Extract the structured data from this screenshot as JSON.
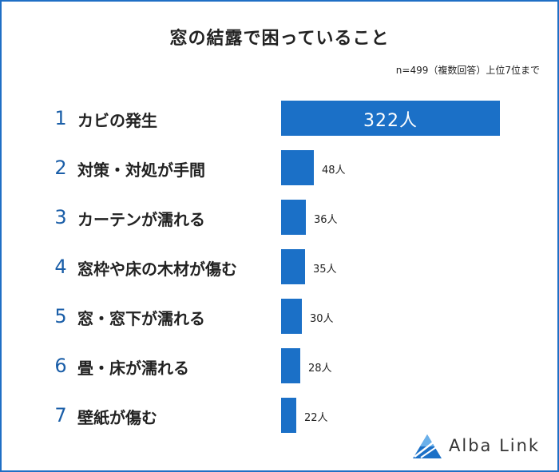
{
  "title": "窓の結露で困っていること",
  "note": "n=499（複数回答）上位7位まで",
  "brand": "Alba Link",
  "colors": {
    "bar": "#1b70c7",
    "rank": "#1a5ea8",
    "border": "#1f6fc5"
  },
  "chart_data": {
    "type": "bar",
    "orientation": "horizontal",
    "unit": "人",
    "ranks": [
      "1",
      "2",
      "3",
      "4",
      "5",
      "6",
      "7"
    ],
    "categories": [
      "カビの発生",
      "対策・対処が手間",
      "カーテンが濡れる",
      "窓枠や床の木材が傷む",
      "窓・窓下が濡れる",
      "畳・床が濡れる",
      "壁紙が傷む"
    ],
    "values": [
      322,
      48,
      36,
      35,
      30,
      28,
      22
    ],
    "labels": [
      "322人",
      "48人",
      "36人",
      "35人",
      "30人",
      "28人",
      "22人"
    ],
    "xlim": [
      0,
      322
    ],
    "grid": false,
    "legend": "none"
  }
}
